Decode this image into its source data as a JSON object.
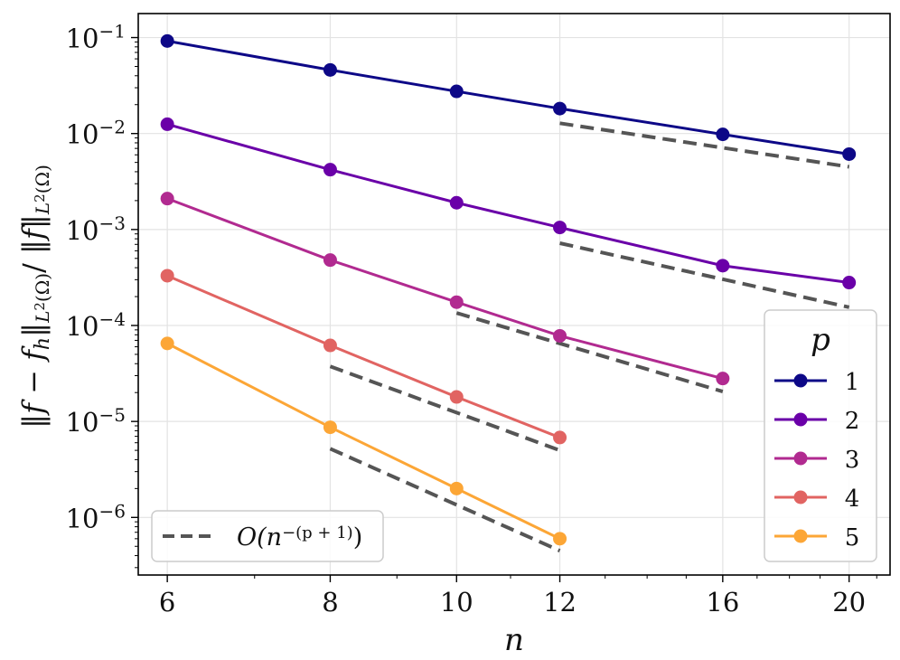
{
  "chart_data": {
    "type": "line",
    "xscale": "log",
    "yscale": "log",
    "xlabel": "n",
    "ylabel": "‖f − f_h‖_{L²(Ω)} / ‖f‖_{L²(Ω)}",
    "xlim": [
      5.7,
      21.5
    ],
    "ylim_exponents": [
      -6.6,
      -0.75
    ],
    "grid": true,
    "x_ticks": [
      {
        "value": 6,
        "label": "6"
      },
      {
        "value": 8,
        "label": "8"
      },
      {
        "value": 10,
        "label": "10"
      },
      {
        "value": 12,
        "label": "12"
      },
      {
        "value": 16,
        "label": "16"
      },
      {
        "value": 20,
        "label": "20"
      }
    ],
    "y_ticks": [
      {
        "exp": -1,
        "base": "10",
        "sup": "−1"
      },
      {
        "exp": -2,
        "base": "10",
        "sup": "−2"
      },
      {
        "exp": -3,
        "base": "10",
        "sup": "−3"
      },
      {
        "exp": -4,
        "base": "10",
        "sup": "−4"
      },
      {
        "exp": -5,
        "base": "10",
        "sup": "−5"
      },
      {
        "exp": -6,
        "base": "10",
        "sup": "−6"
      }
    ],
    "series": [
      {
        "name": "1",
        "color": "#0d0887",
        "x": [
          6,
          8,
          10,
          12,
          16,
          20
        ],
        "y": [
          0.092,
          0.046,
          0.0275,
          0.0182,
          0.0098,
          0.0061
        ]
      },
      {
        "name": "2",
        "color": "#6a00a8",
        "x": [
          6,
          8,
          10,
          12,
          16,
          20
        ],
        "y": [
          0.0125,
          0.0042,
          0.0019,
          0.00105,
          0.00042,
          0.00028
        ]
      },
      {
        "name": "3",
        "color": "#b12a90",
        "x": [
          6,
          8,
          10,
          12,
          16
        ],
        "y": [
          0.0021,
          0.00048,
          0.000175,
          7.8e-05,
          2.8e-05
        ]
      },
      {
        "name": "4",
        "color": "#e16462",
        "x": [
          6,
          8,
          10,
          12
        ],
        "y": [
          0.00033,
          6.2e-05,
          1.8e-05,
          6.8e-06
        ]
      },
      {
        "name": "5",
        "color": "#fca636",
        "x": [
          6,
          8,
          10,
          12
        ],
        "y": [
          6.5e-05,
          8.7e-06,
          2e-06,
          6e-07
        ]
      }
    ],
    "reference_lines": [
      {
        "p": 1,
        "x": [
          12,
          20
        ],
        "y": [
          0.0128,
          0.0045
        ]
      },
      {
        "p": 2,
        "x": [
          12,
          20
        ],
        "y": [
          0.00072,
          0.000155
        ]
      },
      {
        "p": 3,
        "x": [
          10,
          16
        ],
        "y": [
          0.000135,
          2.05e-05
        ]
      },
      {
        "p": 4,
        "x": [
          8,
          12
        ],
        "y": [
          3.75e-05,
          5e-06
        ]
      },
      {
        "p": 5,
        "x": [
          8,
          12
        ],
        "y": [
          5.2e-06,
          4.5e-07
        ]
      }
    ],
    "reference_style": {
      "color": "#555555",
      "dash": "dashed"
    },
    "legend": {
      "title": "p",
      "position": "lower-right",
      "entries": [
        "1",
        "2",
        "3",
        "4",
        "5"
      ]
    },
    "reference_legend": {
      "position": "lower-left",
      "label_prefix": "O(n",
      "label_sup": "−(p + 1)",
      "label_suffix": ")"
    }
  }
}
